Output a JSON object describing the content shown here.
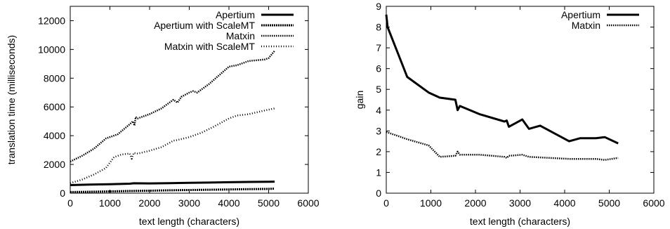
{
  "chart_data": [
    {
      "type": "line",
      "title": "",
      "xlabel": "text length (characters)",
      "ylabel": "translation time (milliseconds)",
      "xlim": [
        0,
        6000
      ],
      "ylim": [
        0,
        13000
      ],
      "xticks": [
        "0",
        "1000",
        "2000",
        "3000",
        "4000",
        "5000",
        "6000"
      ],
      "yticks": [
        "0",
        "2000",
        "4000",
        "6000",
        "8000",
        "10000",
        "12000"
      ],
      "grid": false,
      "legend_position": "top-right",
      "series": [
        {
          "name": "Apertium",
          "style": "solid-thick",
          "x": [
            0,
            500,
            1000,
            1500,
            1600,
            2000,
            2500,
            3000,
            3500,
            4000,
            4500,
            5000,
            5150
          ],
          "y": [
            560,
            600,
            620,
            660,
            690,
            680,
            700,
            720,
            740,
            760,
            780,
            790,
            800
          ]
        },
        {
          "name": "Apertium with ScaleMT",
          "style": "dashed-fine",
          "x": [
            0,
            500,
            1000,
            1500,
            2000,
            2500,
            3000,
            3500,
            4000,
            4500,
            5000,
            5150
          ],
          "y": [
            80,
            100,
            120,
            150,
            170,
            200,
            220,
            240,
            260,
            280,
            300,
            320
          ]
        },
        {
          "name": "Matxin",
          "style": "dotted-dense",
          "x": [
            0,
            300,
            600,
            900,
            1200,
            1500,
            1580,
            1620,
            1650,
            1700,
            2000,
            2300,
            2600,
            2700,
            2800,
            3000,
            3100,
            3200,
            3500,
            4000,
            4200,
            4500,
            4900,
            5000,
            5150
          ],
          "y": [
            2200,
            2600,
            3100,
            3800,
            4100,
            4800,
            5000,
            4700,
            5300,
            5200,
            5500,
            5900,
            6500,
            6300,
            6700,
            7000,
            7100,
            7000,
            7600,
            8800,
            8900,
            9200,
            9300,
            9400,
            9900
          ]
        },
        {
          "name": "Matxin with ScaleMT",
          "style": "dotted-wide",
          "x": [
            0,
            300,
            600,
            900,
            1100,
            1300,
            1500,
            1550,
            1600,
            1700,
            2000,
            2300,
            2600,
            2700,
            3000,
            3300,
            3600,
            4000,
            4200,
            4500,
            4900,
            5150
          ],
          "y": [
            700,
            950,
            1300,
            1750,
            2500,
            2700,
            2750,
            2400,
            2800,
            2750,
            2950,
            3200,
            3650,
            3700,
            3900,
            4200,
            4600,
            5200,
            5400,
            5500,
            5750,
            5900
          ]
        }
      ]
    },
    {
      "type": "line",
      "title": "",
      "xlabel": "text length (characters)",
      "ylabel": "gain",
      "xlim": [
        0,
        6000
      ],
      "ylim": [
        0,
        9
      ],
      "xticks": [
        "0",
        "1000",
        "2000",
        "3000",
        "4000",
        "5000",
        "6000"
      ],
      "yticks": [
        "0",
        "1",
        "2",
        "3",
        "4",
        "5",
        "6",
        "7",
        "8",
        "9"
      ],
      "grid": false,
      "legend_position": "top-right",
      "series": [
        {
          "name": "Apertium",
          "style": "solid-thick",
          "x": [
            0,
            30,
            470,
            950,
            1200,
            1550,
            1600,
            1650,
            2100,
            2650,
            2700,
            2750,
            3050,
            3200,
            3450,
            4100,
            4350,
            4700,
            4900,
            5200
          ],
          "y": [
            8.6,
            8.0,
            5.6,
            4.85,
            4.6,
            4.5,
            4.0,
            4.2,
            3.8,
            3.45,
            3.5,
            3.2,
            3.55,
            3.1,
            3.25,
            2.5,
            2.65,
            2.65,
            2.7,
            2.4
          ]
        },
        {
          "name": "Matxin",
          "style": "dotted-dense",
          "x": [
            0,
            470,
            950,
            1200,
            1550,
            1600,
            1650,
            2100,
            2650,
            2700,
            2750,
            3050,
            3200,
            4100,
            4700,
            4900,
            5200
          ],
          "y": [
            2.95,
            2.6,
            2.3,
            1.75,
            1.8,
            2.0,
            1.85,
            1.85,
            1.75,
            1.7,
            1.8,
            1.85,
            1.75,
            1.65,
            1.65,
            1.6,
            1.7
          ]
        }
      ]
    }
  ]
}
